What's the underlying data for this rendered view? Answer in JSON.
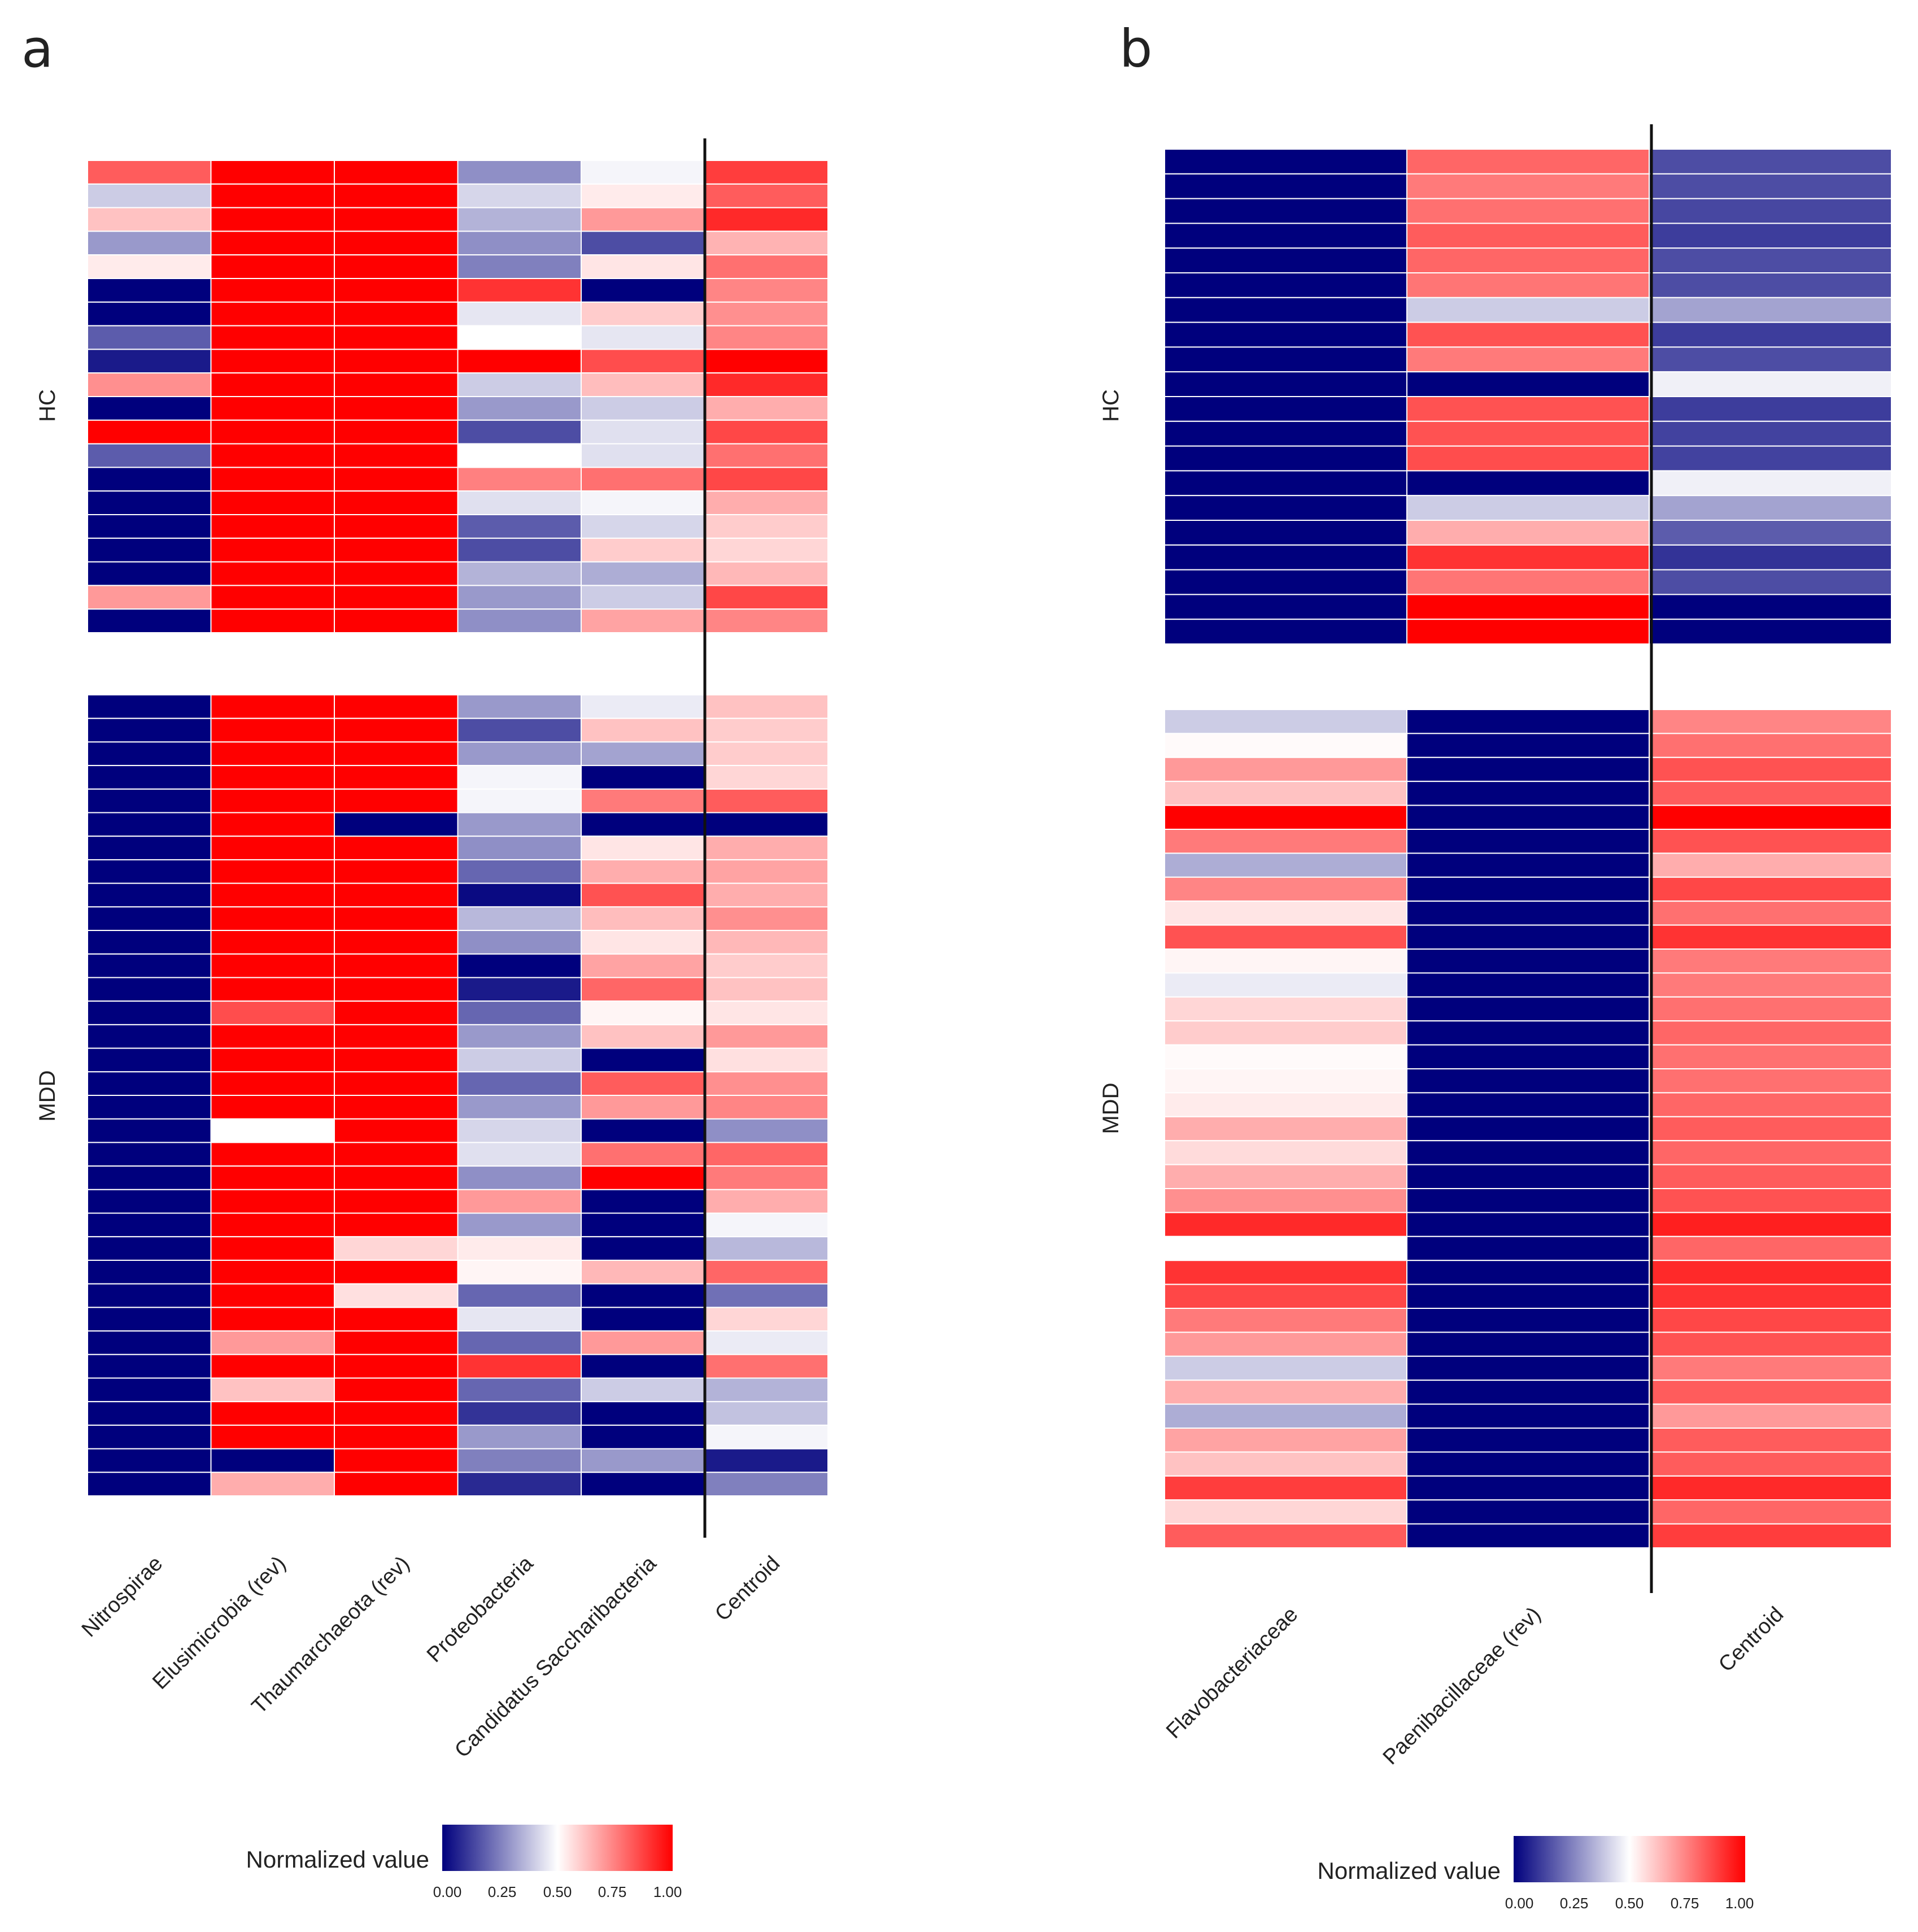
{
  "colors": {
    "low": "#00007d",
    "mid": "#ffffff",
    "high": "#ff0000"
  },
  "chart_data": [
    {
      "type": "heatmap",
      "panel_label": "a",
      "columns": [
        "Nitrospirae",
        "Elusimicrobia (rev)",
        "Thaumarchaeota (rev)",
        "Proteobacteria",
        "Candidatus Saccharibacteria",
        "Centroid"
      ],
      "separator_after_column": 5,
      "color_scale": {
        "min": 0,
        "max": 1,
        "colors": [
          "#00007d",
          "#ffffff",
          "#ff0000"
        ]
      },
      "legend": {
        "title": "Normalized value",
        "ticks": [
          "0.00",
          "0.25",
          "0.50",
          "0.75",
          "1.00"
        ]
      },
      "groups": [
        {
          "name": "HC",
          "rows": [
            [
              0.82,
              1.0,
              1.0,
              0.28,
              0.48,
              0.88
            ],
            [
              0.4,
              1.0,
              1.0,
              0.42,
              0.54,
              0.82
            ],
            [
              0.62,
              1.0,
              1.0,
              0.35,
              0.7,
              0.92
            ],
            [
              0.3,
              1.0,
              1.0,
              0.28,
              0.15,
              0.65
            ],
            [
              0.54,
              1.0,
              1.0,
              0.25,
              0.55,
              0.78
            ],
            [
              0.0,
              1.0,
              1.0,
              0.9,
              0.0,
              0.74
            ],
            [
              0.0,
              1.0,
              1.0,
              0.45,
              0.6,
              0.72
            ],
            [
              0.18,
              1.0,
              1.0,
              0.5,
              0.45,
              0.74
            ],
            [
              0.05,
              1.0,
              1.0,
              1.0,
              0.85,
              1.0
            ],
            [
              0.72,
              1.0,
              1.0,
              0.4,
              0.63,
              0.92
            ],
            [
              0.0,
              1.0,
              1.0,
              0.3,
              0.4,
              0.66
            ],
            [
              1.0,
              1.0,
              1.0,
              0.15,
              0.44,
              0.86
            ],
            [
              0.18,
              1.0,
              1.0,
              0.5,
              0.44,
              0.78
            ],
            [
              0.0,
              1.0,
              1.0,
              0.75,
              0.78,
              0.86
            ],
            [
              0.0,
              1.0,
              1.0,
              0.44,
              0.48,
              0.66
            ],
            [
              0.0,
              1.0,
              1.0,
              0.18,
              0.42,
              0.6
            ],
            [
              0.0,
              1.0,
              1.0,
              0.15,
              0.6,
              0.58
            ],
            [
              0.0,
              1.0,
              1.0,
              0.35,
              0.34,
              0.64
            ],
            [
              0.7,
              1.0,
              1.0,
              0.3,
              0.4,
              0.86
            ],
            [
              0.0,
              1.0,
              1.0,
              0.28,
              0.68,
              0.74
            ]
          ]
        },
        {
          "name": "MDD",
          "rows": [
            [
              0.0,
              1.0,
              1.0,
              0.3,
              0.46,
              0.62
            ],
            [
              0.0,
              1.0,
              1.0,
              0.15,
              0.62,
              0.6
            ],
            [
              0.0,
              1.0,
              1.0,
              0.3,
              0.32,
              0.6
            ],
            [
              0.0,
              1.0,
              1.0,
              0.48,
              0.0,
              0.58
            ],
            [
              0.0,
              1.0,
              1.0,
              0.48,
              0.76,
              0.82
            ],
            [
              0.0,
              1.0,
              0.0,
              0.3,
              0.0,
              0.0
            ],
            [
              0.0,
              1.0,
              1.0,
              0.28,
              0.55,
              0.66
            ],
            [
              0.0,
              1.0,
              1.0,
              0.2,
              0.66,
              0.68
            ],
            [
              0.0,
              1.0,
              1.0,
              0.02,
              0.84,
              0.66
            ],
            [
              0.0,
              1.0,
              1.0,
              0.36,
              0.63,
              0.72
            ],
            [
              0.0,
              1.0,
              1.0,
              0.28,
              0.55,
              0.64
            ],
            [
              0.0,
              1.0,
              1.0,
              0.0,
              0.68,
              0.6
            ],
            [
              0.0,
              1.0,
              1.0,
              0.05,
              0.8,
              0.62
            ],
            [
              0.0,
              0.85,
              1.0,
              0.2,
              0.52,
              0.55
            ],
            [
              0.0,
              1.0,
              1.0,
              0.3,
              0.62,
              0.7
            ],
            [
              0.0,
              1.0,
              1.0,
              0.4,
              0.0,
              0.56
            ],
            [
              0.0,
              1.0,
              1.0,
              0.2,
              0.82,
              0.72
            ],
            [
              0.0,
              1.0,
              1.0,
              0.3,
              0.7,
              0.74
            ],
            [
              0.0,
              0.5,
              1.0,
              0.42,
              0.0,
              0.28
            ],
            [
              0.0,
              1.0,
              1.0,
              0.44,
              0.78,
              0.8
            ],
            [
              0.0,
              1.0,
              1.0,
              0.28,
              1.0,
              0.76
            ],
            [
              0.0,
              1.0,
              1.0,
              0.7,
              0.0,
              0.66
            ],
            [
              0.0,
              1.0,
              1.0,
              0.3,
              0.0,
              0.48
            ],
            [
              0.0,
              1.0,
              0.58,
              0.54,
              0.0,
              0.36
            ],
            [
              0.0,
              1.0,
              1.0,
              0.52,
              0.64,
              0.8
            ],
            [
              0.0,
              1.0,
              0.56,
              0.2,
              0.0,
              0.22
            ],
            [
              0.0,
              1.0,
              1.0,
              0.45,
              0.0,
              0.58
            ],
            [
              0.0,
              0.7,
              1.0,
              0.2,
              0.7,
              0.46
            ],
            [
              0.0,
              1.0,
              1.0,
              0.9,
              0.0,
              0.78
            ],
            [
              0.0,
              0.62,
              1.0,
              0.2,
              0.4,
              0.35
            ],
            [
              0.0,
              1.0,
              1.0,
              0.1,
              0.0,
              0.38
            ],
            [
              0.0,
              1.0,
              1.0,
              0.3,
              0.0,
              0.48
            ],
            [
              0.0,
              0.0,
              1.0,
              0.25,
              0.3,
              0.05
            ],
            [
              0.0,
              0.66,
              1.0,
              0.08,
              0.0,
              0.25
            ]
          ]
        }
      ]
    },
    {
      "type": "heatmap",
      "panel_label": "b",
      "columns": [
        "Flavobacteriaceae",
        "Paenibacillaceae (rev)",
        "Centroid"
      ],
      "separator_after_column": 2,
      "color_scale": {
        "min": 0,
        "max": 1,
        "colors": [
          "#00007d",
          "#ffffff",
          "#ff0000"
        ]
      },
      "legend": {
        "title": "Normalized value",
        "ticks": [
          "0.00",
          "0.25",
          "0.50",
          "0.75",
          "1.00"
        ]
      },
      "groups": [
        {
          "name": "HC",
          "rows": [
            [
              0.0,
              0.8,
              0.15
            ],
            [
              0.0,
              0.76,
              0.15
            ],
            [
              0.0,
              0.78,
              0.14
            ],
            [
              0.0,
              0.82,
              0.12
            ],
            [
              0.0,
              0.8,
              0.15
            ],
            [
              0.0,
              0.77,
              0.15
            ],
            [
              0.0,
              0.4,
              0.32
            ],
            [
              0.0,
              0.84,
              0.12
            ],
            [
              0.0,
              0.76,
              0.15
            ],
            [
              0.0,
              0.0,
              0.47
            ],
            [
              0.0,
              0.84,
              0.12
            ],
            [
              0.0,
              0.84,
              0.13
            ],
            [
              0.0,
              0.85,
              0.13
            ],
            [
              0.0,
              0.0,
              0.47
            ],
            [
              0.0,
              0.4,
              0.32
            ],
            [
              0.0,
              0.66,
              0.18
            ],
            [
              0.0,
              0.9,
              0.1
            ],
            [
              0.0,
              0.77,
              0.15
            ],
            [
              0.0,
              1.0,
              0.0
            ],
            [
              0.0,
              1.0,
              0.0
            ]
          ]
        },
        {
          "name": "MDD",
          "rows": [
            [
              0.4,
              0.0,
              0.74
            ],
            [
              0.51,
              0.0,
              0.78
            ],
            [
              0.7,
              0.0,
              0.84
            ],
            [
              0.62,
              0.0,
              0.82
            ],
            [
              1.0,
              0.0,
              1.0
            ],
            [
              0.76,
              0.0,
              0.84
            ],
            [
              0.34,
              0.0,
              0.66
            ],
            [
              0.74,
              0.0,
              0.86
            ],
            [
              0.55,
              0.0,
              0.78
            ],
            [
              0.84,
              0.0,
              0.9
            ],
            [
              0.52,
              0.0,
              0.76
            ],
            [
              0.46,
              0.0,
              0.76
            ],
            [
              0.58,
              0.0,
              0.78
            ],
            [
              0.6,
              0.0,
              0.8
            ],
            [
              0.51,
              0.0,
              0.78
            ],
            [
              0.52,
              0.0,
              0.78
            ],
            [
              0.54,
              0.0,
              0.8
            ],
            [
              0.66,
              0.0,
              0.82
            ],
            [
              0.57,
              0.0,
              0.8
            ],
            [
              0.66,
              0.0,
              0.82
            ],
            [
              0.72,
              0.0,
              0.84
            ],
            [
              0.92,
              0.0,
              0.94
            ],
            [
              0.5,
              0.0,
              0.8
            ],
            [
              0.9,
              0.0,
              0.92
            ],
            [
              0.86,
              0.0,
              0.9
            ],
            [
              0.76,
              0.0,
              0.86
            ],
            [
              0.7,
              0.0,
              0.84
            ],
            [
              0.4,
              0.0,
              0.76
            ],
            [
              0.66,
              0.0,
              0.82
            ],
            [
              0.34,
              0.0,
              0.7
            ],
            [
              0.68,
              0.0,
              0.82
            ],
            [
              0.62,
              0.0,
              0.82
            ],
            [
              0.88,
              0.0,
              0.92
            ],
            [
              0.58,
              0.0,
              0.8
            ],
            [
              0.82,
              0.0,
              0.88
            ]
          ]
        }
      ]
    }
  ]
}
